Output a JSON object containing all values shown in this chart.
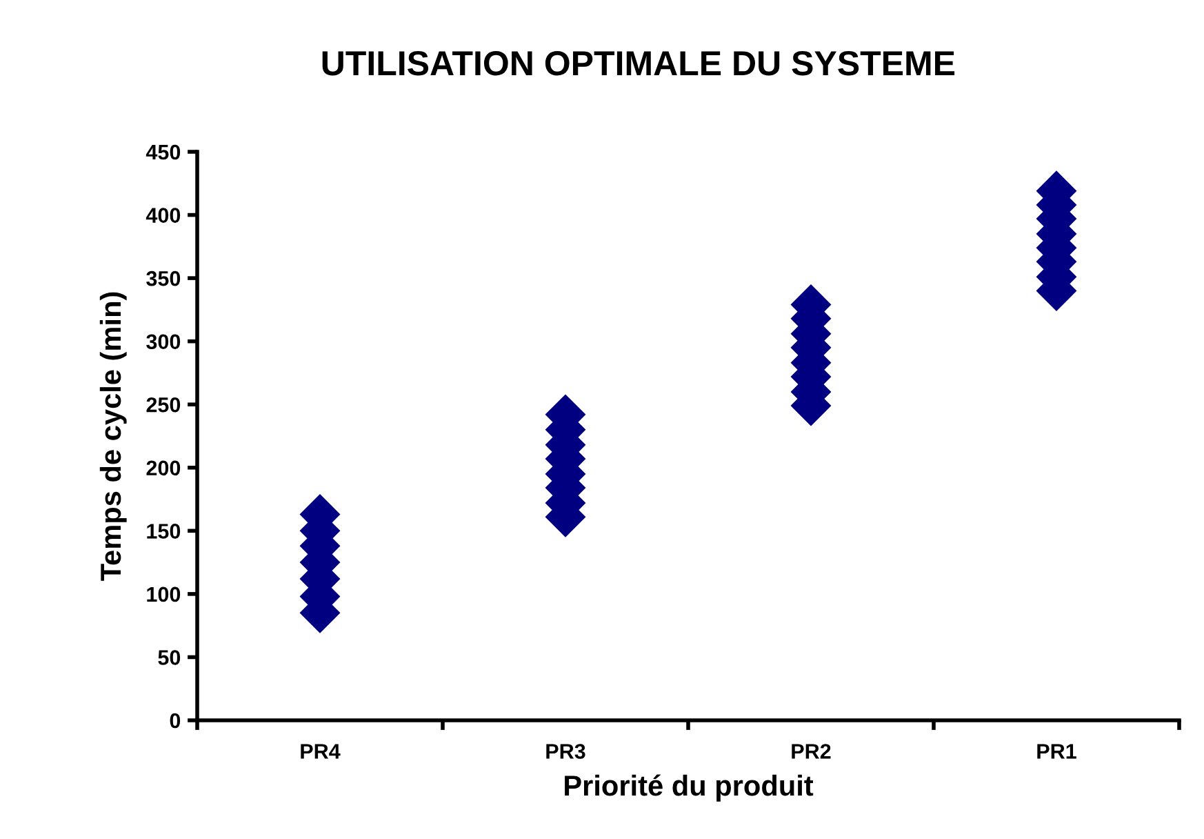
{
  "chart_data": {
    "type": "scatter",
    "title": "UTILISATION OPTIMALE DU SYSTEME",
    "xlabel": "Priorité du produit",
    "ylabel": "Temps de cycle (min)",
    "categories": [
      "PR4",
      "PR3",
      "PR2",
      "PR1"
    ],
    "series": [
      {
        "color": "#000080",
        "x": [
          "PR4",
          "PR4",
          "PR4",
          "PR4",
          "PR4",
          "PR4",
          "PR4",
          "PR3",
          "PR3",
          "PR3",
          "PR3",
          "PR3",
          "PR3",
          "PR3",
          "PR3",
          "PR2",
          "PR2",
          "PR2",
          "PR2",
          "PR2",
          "PR2",
          "PR2",
          "PR2",
          "PR1",
          "PR1",
          "PR1",
          "PR1",
          "PR1",
          "PR1",
          "PR1",
          "PR1"
        ],
        "values": [
          163,
          150,
          138,
          125,
          112,
          98,
          85,
          242,
          230,
          218,
          207,
          195,
          184,
          172,
          161,
          329,
          318,
          306,
          295,
          283,
          272,
          260,
          249,
          419,
          408,
          397,
          385,
          374,
          363,
          351,
          340
        ]
      }
    ],
    "ylim": [
      0,
      450
    ],
    "yticks": [
      0,
      50,
      100,
      150,
      200,
      250,
      300,
      350,
      400,
      450
    ],
    "grid": false,
    "legend": false,
    "marker": "diamond"
  }
}
